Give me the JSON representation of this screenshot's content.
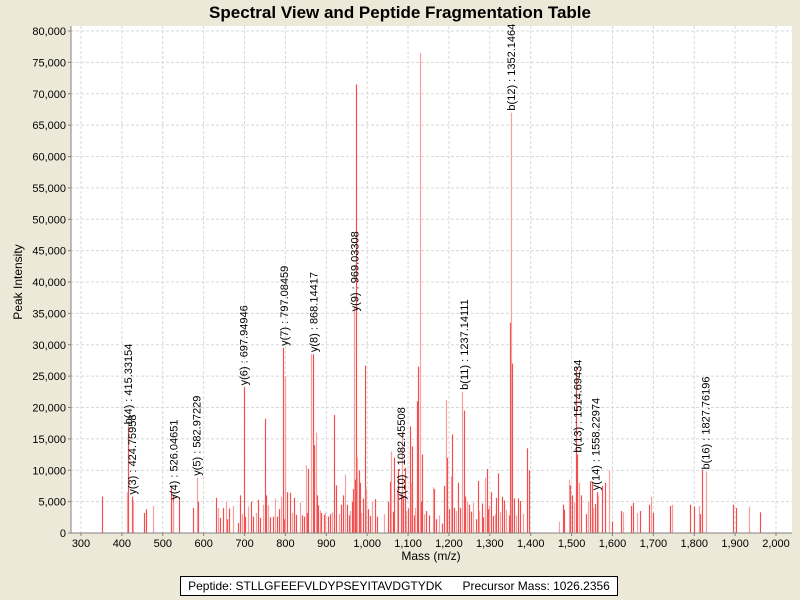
{
  "chart_data": {
    "type": "bar",
    "title": "Spectral View and Peptide Fragmentation Table",
    "xlabel": "Mass (m/z)",
    "ylabel": "Peak Intensity",
    "xlim": [
      275,
      2040
    ],
    "ylim": [
      0,
      80000
    ],
    "grid": true,
    "x_ticks": [
      "300",
      "400",
      "500",
      "600",
      "700",
      "800",
      "900",
      "1,000",
      "1,100",
      "1,200",
      "1,300",
      "1,400",
      "1,500",
      "1,600",
      "1,700",
      "1,800",
      "1,900",
      "2,000"
    ],
    "x_tick_values": [
      300,
      400,
      500,
      600,
      700,
      800,
      900,
      1000,
      1100,
      1200,
      1300,
      1400,
      1500,
      1600,
      1700,
      1800,
      1900,
      2000
    ],
    "y_ticks": [
      "0",
      "5,000",
      "10,000",
      "15,000",
      "20,000",
      "25,000",
      "30,000",
      "35,000",
      "40,000",
      "45,000",
      "50,000",
      "55,000",
      "60,000",
      "65,000",
      "70,000",
      "75,000",
      "80,000"
    ],
    "y_tick_values": [
      0,
      5000,
      10000,
      15000,
      20000,
      25000,
      30000,
      35000,
      40000,
      45000,
      50000,
      55000,
      60000,
      65000,
      70000,
      75000,
      80000
    ],
    "peak_color": "#f05050",
    "peak_color_light": "#f8a0a0",
    "peaks": [
      [
        352,
        5800
      ],
      [
        413,
        6500
      ],
      [
        415,
        17000
      ],
      [
        425,
        5800
      ],
      [
        428,
        5200
      ],
      [
        455,
        3200
      ],
      [
        460,
        3800
      ],
      [
        475,
        4300
      ],
      [
        521,
        7400
      ],
      [
        524,
        6000
      ],
      [
        526,
        5000
      ],
      [
        540,
        5500
      ],
      [
        575,
        4000
      ],
      [
        583,
        8800
      ],
      [
        585,
        5000
      ],
      [
        630,
        5600
      ],
      [
        634,
        4000
      ],
      [
        640,
        2400
      ],
      [
        648,
        4000
      ],
      [
        655,
        5000
      ],
      [
        658,
        2200
      ],
      [
        662,
        3900
      ],
      [
        672,
        4300
      ],
      [
        685,
        1600
      ],
      [
        690,
        6000
      ],
      [
        695,
        3000
      ],
      [
        698,
        23200
      ],
      [
        702,
        2600
      ],
      [
        708,
        4200
      ],
      [
        715,
        5000
      ],
      [
        720,
        2600
      ],
      [
        728,
        3200
      ],
      [
        732,
        5300
      ],
      [
        738,
        2400
      ],
      [
        745,
        4500
      ],
      [
        750,
        18200
      ],
      [
        753,
        6000
      ],
      [
        758,
        4400
      ],
      [
        763,
        2500
      ],
      [
        770,
        2600
      ],
      [
        775,
        5500
      ],
      [
        780,
        2600
      ],
      [
        785,
        3800
      ],
      [
        790,
        5800
      ],
      [
        794,
        29500
      ],
      [
        797,
        2200
      ],
      [
        800,
        25000
      ],
      [
        805,
        6500
      ],
      [
        810,
        6400
      ],
      [
        815,
        3200
      ],
      [
        820,
        5600
      ],
      [
        825,
        2900
      ],
      [
        835,
        4900
      ],
      [
        840,
        2800
      ],
      [
        845,
        2600
      ],
      [
        850,
        10800
      ],
      [
        852,
        3200
      ],
      [
        856,
        10200
      ],
      [
        862,
        28500
      ],
      [
        868,
        28500
      ],
      [
        870,
        14000
      ],
      [
        874,
        16000
      ],
      [
        878,
        6000
      ],
      [
        880,
        4400
      ],
      [
        884,
        3600
      ],
      [
        888,
        3200
      ],
      [
        894,
        2900
      ],
      [
        898,
        3200
      ],
      [
        905,
        2600
      ],
      [
        910,
        3000
      ],
      [
        915,
        3300
      ],
      [
        920,
        18800
      ],
      [
        923,
        7600
      ],
      [
        930,
        3000
      ],
      [
        935,
        4500
      ],
      [
        940,
        6000
      ],
      [
        945,
        9300
      ],
      [
        950,
        4500
      ],
      [
        955,
        2800
      ],
      [
        958,
        3500
      ],
      [
        962,
        5000
      ],
      [
        965,
        7000
      ],
      [
        968,
        36000
      ],
      [
        971,
        8500
      ],
      [
        973,
        71500
      ],
      [
        976,
        12000
      ],
      [
        979,
        10000
      ],
      [
        982,
        8000
      ],
      [
        986,
        3200
      ],
      [
        990,
        5500
      ],
      [
        995,
        26700
      ],
      [
        998,
        7000
      ],
      [
        1002,
        3800
      ],
      [
        1008,
        2700
      ],
      [
        1012,
        5000
      ],
      [
        1018,
        5400
      ],
      [
        1025,
        2600
      ],
      [
        1040,
        3000
      ],
      [
        1050,
        5000
      ],
      [
        1055,
        8200
      ],
      [
        1058,
        13000
      ],
      [
        1062,
        3400
      ],
      [
        1066,
        12000
      ],
      [
        1072,
        7000
      ],
      [
        1076,
        10200
      ],
      [
        1082,
        6200
      ],
      [
        1085,
        16200
      ],
      [
        1088,
        5500
      ],
      [
        1092,
        10400
      ],
      [
        1096,
        3500
      ],
      [
        1100,
        3900
      ],
      [
        1104,
        17000
      ],
      [
        1108,
        8000
      ],
      [
        1110,
        13800
      ],
      [
        1115,
        2800
      ],
      [
        1118,
        4000
      ],
      [
        1122,
        21000
      ],
      [
        1125,
        26500
      ],
      [
        1128,
        76500
      ],
      [
        1132,
        5000
      ],
      [
        1135,
        12500
      ],
      [
        1140,
        3000
      ],
      [
        1145,
        3500
      ],
      [
        1150,
        2800
      ],
      [
        1160,
        7300
      ],
      [
        1163,
        7000
      ],
      [
        1168,
        2200
      ],
      [
        1175,
        2800
      ],
      [
        1182,
        1500
      ],
      [
        1188,
        7500
      ],
      [
        1192,
        21200
      ],
      [
        1196,
        12000
      ],
      [
        1200,
        3800
      ],
      [
        1205,
        9000
      ],
      [
        1208,
        15700
      ],
      [
        1212,
        4000
      ],
      [
        1218,
        3500
      ],
      [
        1222,
        8000
      ],
      [
        1226,
        4000
      ],
      [
        1232,
        22500
      ],
      [
        1236,
        19500
      ],
      [
        1240,
        5800
      ],
      [
        1245,
        5000
      ],
      [
        1250,
        4500
      ],
      [
        1255,
        3400
      ],
      [
        1260,
        4800
      ],
      [
        1266,
        2200
      ],
      [
        1270,
        8300
      ],
      [
        1274,
        3500
      ],
      [
        1280,
        4700
      ],
      [
        1284,
        2500
      ],
      [
        1288,
        8800
      ],
      [
        1292,
        10200
      ],
      [
        1295,
        3800
      ],
      [
        1298,
        4300
      ],
      [
        1302,
        6500
      ],
      [
        1308,
        2700
      ],
      [
        1312,
        3000
      ],
      [
        1316,
        5600
      ],
      [
        1320,
        9500
      ],
      [
        1325,
        3300
      ],
      [
        1330,
        5800
      ],
      [
        1335,
        5200
      ],
      [
        1340,
        3700
      ],
      [
        1346,
        2800
      ],
      [
        1350,
        33500
      ],
      [
        1352,
        67000
      ],
      [
        1355,
        27000
      ],
      [
        1360,
        5500
      ],
      [
        1364,
        2800
      ],
      [
        1370,
        5500
      ],
      [
        1375,
        5100
      ],
      [
        1380,
        3000
      ],
      [
        1392,
        13500
      ],
      [
        1395,
        10000
      ],
      [
        1468,
        1800
      ],
      [
        1478,
        4500
      ],
      [
        1482,
        3700
      ],
      [
        1494,
        8500
      ],
      [
        1497,
        7600
      ],
      [
        1502,
        6000
      ],
      [
        1507,
        4900
      ],
      [
        1512,
        26500
      ],
      [
        1514,
        12500
      ],
      [
        1518,
        8000
      ],
      [
        1522,
        6000
      ],
      [
        1535,
        3000
      ],
      [
        1540,
        5000
      ],
      [
        1545,
        8200
      ],
      [
        1550,
        8000
      ],
      [
        1553,
        4000
      ],
      [
        1558,
        4600
      ],
      [
        1562,
        6500
      ],
      [
        1565,
        6000
      ],
      [
        1575,
        7500
      ],
      [
        1582,
        8000
      ],
      [
        1592,
        10000
      ],
      [
        1600,
        1800
      ],
      [
        1620,
        3500
      ],
      [
        1625,
        3300
      ],
      [
        1645,
        4300
      ],
      [
        1650,
        4800
      ],
      [
        1660,
        3200
      ],
      [
        1668,
        3500
      ],
      [
        1690,
        4500
      ],
      [
        1695,
        5800
      ],
      [
        1700,
        3200
      ],
      [
        1740,
        4300
      ],
      [
        1745,
        4500
      ],
      [
        1790,
        4500
      ],
      [
        1800,
        4200
      ],
      [
        1812,
        4300
      ],
      [
        1815,
        3000
      ],
      [
        1820,
        10100
      ],
      [
        1828,
        9800
      ],
      [
        1895,
        4500
      ],
      [
        1903,
        4000
      ],
      [
        1935,
        4200
      ],
      [
        1960,
        3300
      ]
    ],
    "annotations": [
      {
        "x": 415.33154,
        "y": 17000,
        "text": "b(4) : 415.33154"
      },
      {
        "x": 424.75958,
        "y": 5800,
        "text": "y(3) : 424.75958"
      },
      {
        "x": 526.04651,
        "y": 5000,
        "text": "y(4) : 526.04651"
      },
      {
        "x": 582.97229,
        "y": 8800,
        "text": "y(5) : 582.97229"
      },
      {
        "x": 697.94946,
        "y": 23200,
        "text": "y(6) : 697.94946"
      },
      {
        "x": 797.08459,
        "y": 29500,
        "text": "y(7) : 797.08459"
      },
      {
        "x": 868.14417,
        "y": 28500,
        "text": "y(8) : 868.14417"
      },
      {
        "x": 969.03308,
        "y": 35000,
        "text": "y(9) : 969.03308"
      },
      {
        "x": 1082.45508,
        "y": 5000,
        "text": "y(10) : 1082.45508"
      },
      {
        "x": 1237.14111,
        "y": 22500,
        "text": "b(11) : 1237.14111"
      },
      {
        "x": 1352.1464,
        "y": 67000,
        "text": "b(12) : 1352.1464"
      },
      {
        "x": 1514.69434,
        "y": 12500,
        "text": "b(13) : 1514.69434"
      },
      {
        "x": 1558.22974,
        "y": 6500,
        "text": "y(14) : 1558.22974"
      },
      {
        "x": 1827.76196,
        "y": 9800,
        "text": "b(16) : 1827.76196"
      }
    ]
  },
  "legend": {
    "peptide": "Peptide: STLLGFEEFVLDYPSEYITAVDGTYDK",
    "precursor": "Precursor Mass: 1026.2356"
  }
}
